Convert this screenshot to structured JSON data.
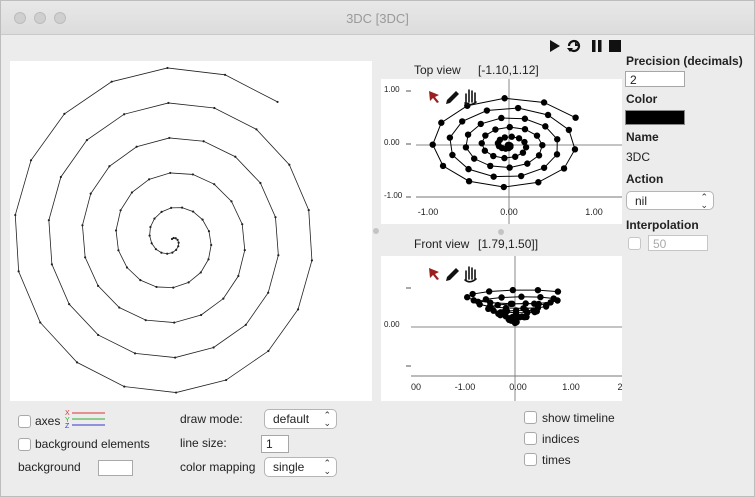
{
  "window": {
    "title": "3DC [3DC]"
  },
  "toolbar": {
    "play_icon": "play-icon",
    "loop_icon": "loop-icon",
    "pause_icon": "pause-icon",
    "stop_icon": "stop-icon"
  },
  "top_view": {
    "title": "Top view",
    "range": "[-1.10,1.12]",
    "y_ticks": [
      "1.00",
      "0.00",
      "-1.00"
    ],
    "x_ticks": [
      "-1.00",
      "0.00",
      "1.00"
    ]
  },
  "front_view": {
    "title": "Front view",
    "range": "[1.79,1.50]]",
    "y_ticks": [
      "0.00"
    ],
    "x_ticks": [
      "00",
      "-1.00",
      "0.00",
      "1.00",
      "2"
    ]
  },
  "right_panel": {
    "precision_label": "Precision (decimals)",
    "precision_value": "2",
    "color_label": "Color",
    "color_value": "#000000",
    "name_label": "Name",
    "name_value": "3DC",
    "action_label": "Action",
    "action_value": "nil",
    "interpolation_label": "Interpolation",
    "interpolation_placeholder": "50"
  },
  "bottom": {
    "axes_label": "axes",
    "axes_legend": [
      "X",
      "Y",
      "Z"
    ],
    "background_elements_label": "background elements",
    "background_label": "background",
    "draw_mode_label": "draw mode:",
    "draw_mode_value": "default",
    "line_size_label": "line size:",
    "line_size_value": "1",
    "color_mapping_label": "color mapping",
    "color_mapping_value": "single",
    "show_timeline_label": "show timeline",
    "indices_label": "indices",
    "times_label": "times"
  }
}
